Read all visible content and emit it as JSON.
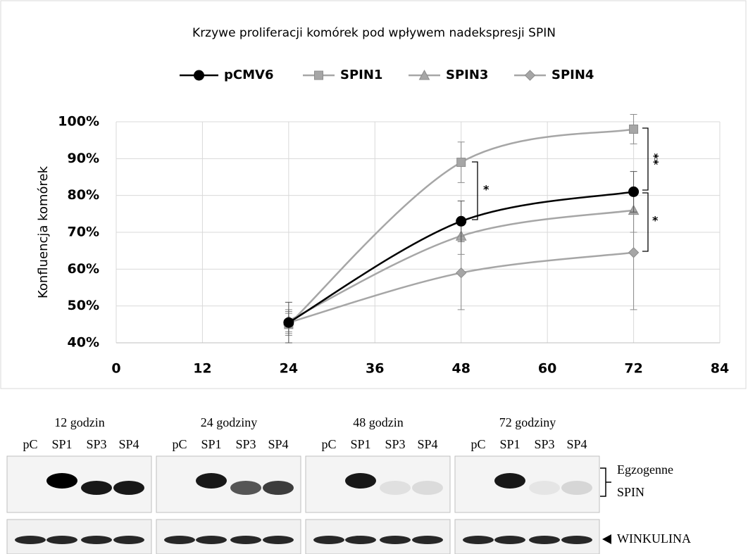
{
  "chart_data": {
    "type": "line",
    "title": "Krzywe proliferacji komórek pod wpływem nadekspresji SPIN",
    "ylabel": "Konfluencja komórek",
    "x": [
      24,
      48,
      72
    ],
    "xlim": [
      0,
      84
    ],
    "xticks": [
      0,
      12,
      24,
      36,
      48,
      60,
      72,
      84
    ],
    "ylim": [
      40,
      100
    ],
    "yticks": [
      {
        "value": 40,
        "label": "40%"
      },
      {
        "value": 50,
        "label": "50%"
      },
      {
        "value": 60,
        "label": "60%"
      },
      {
        "value": 70,
        "label": "70%"
      },
      {
        "value": 80,
        "label": "80%"
      },
      {
        "value": 90,
        "label": "90%"
      },
      {
        "value": 100,
        "label": "100%"
      }
    ],
    "grid": true,
    "series": [
      {
        "name": "pCMV6",
        "color": "#000000",
        "marker": "circle",
        "values": [
          45.5,
          73,
          81
        ],
        "errors": [
          5.5,
          5.5,
          5.5
        ]
      },
      {
        "name": "SPIN1",
        "color": "#a6a6a6",
        "marker": "square",
        "values": [
          45,
          89,
          98
        ],
        "errors": [
          3,
          5.5,
          4
        ]
      },
      {
        "name": "SPIN3",
        "color": "#a6a6a6",
        "marker": "triangle",
        "values": [
          46,
          69,
          76
        ],
        "errors": [
          3,
          5,
          6
        ]
      },
      {
        "name": "SPIN4",
        "color": "#a6a6a6",
        "marker": "diamond",
        "values": [
          45.5,
          59,
          64.5
        ],
        "errors": [
          3,
          10,
          15.5
        ]
      }
    ],
    "annotations": [
      "*",
      "**",
      "*"
    ]
  },
  "blot": {
    "panels": [
      {
        "title": "12 godzin",
        "lanes": [
          "pC",
          "SP1",
          "SP3",
          "SP4"
        ]
      },
      {
        "title": "24 godziny",
        "lanes": [
          "pC",
          "SP1",
          "SP3",
          "SP4"
        ]
      },
      {
        "title": "48 godzin",
        "lanes": [
          "pC",
          "SP1",
          "SP3",
          "SP4"
        ]
      },
      {
        "title": "72 godziny",
        "lanes": [
          "pC",
          "SP1",
          "SP3",
          "SP4"
        ]
      }
    ],
    "row_labels": [
      "Egzogenne",
      "SPIN",
      "WINKULINA"
    ]
  }
}
